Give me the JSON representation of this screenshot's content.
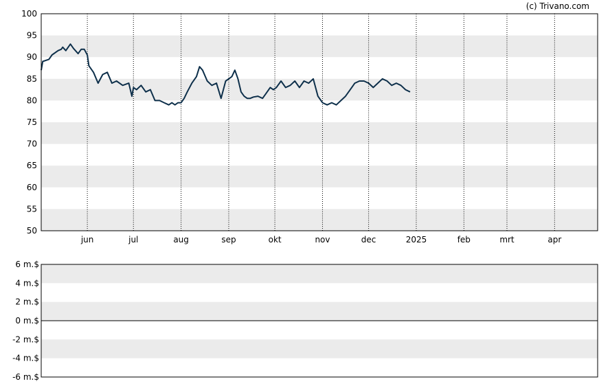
{
  "credit": "(c) Trivano.com",
  "colors": {
    "band": "#ebebeb",
    "line": "#0d2f4a",
    "marker": "#e8323c",
    "marker_fill": "rgba(232,50,60,0.55)",
    "axis": "#000000"
  },
  "chart_data": [
    {
      "type": "line",
      "title": "",
      "xlabel": "",
      "ylabel": "",
      "ylim": [
        50,
        100
      ],
      "yticks": [
        "100",
        "95",
        "90",
        "85",
        "80",
        "75",
        "70",
        "65",
        "60",
        "55",
        "50"
      ],
      "xticks": [
        "jun",
        "jul",
        "aug",
        "sep",
        "okt",
        "nov",
        "dec",
        "2025",
        "feb",
        "mrt",
        "apr"
      ],
      "xtick_dates": [
        "2024-06-01",
        "2024-07-01",
        "2024-08-01",
        "2024-09-01",
        "2024-10-01",
        "2024-11-01",
        "2024-12-01",
        "2025-01-01",
        "2025-02-01",
        "2025-03-01",
        "2025-04-01"
      ],
      "x_range": [
        "2024-05-02",
        "2025-04-29"
      ],
      "grid": "horizontal bands, vertical dotted lines at month starts",
      "series": [
        {
          "points": [
            [
              "2024-05-02",
              87.0
            ],
            [
              "2024-05-03",
              89.0
            ],
            [
              "2024-05-07",
              89.5
            ],
            [
              "2024-05-09",
              90.5
            ],
            [
              "2024-05-13",
              91.5
            ],
            [
              "2024-05-15",
              91.8
            ],
            [
              "2024-05-16",
              92.3
            ],
            [
              "2024-05-18",
              91.5
            ],
            [
              "2024-05-21",
              93.0
            ],
            [
              "2024-05-23",
              92.0
            ],
            [
              "2024-05-26",
              90.8
            ],
            [
              "2024-05-28",
              91.8
            ],
            [
              "2024-05-30",
              91.8
            ],
            [
              "2024-06-01",
              90.5
            ],
            [
              "2024-06-02",
              88.0
            ],
            [
              "2024-06-05",
              86.5
            ],
            [
              "2024-06-08",
              84.0
            ],
            [
              "2024-06-11",
              86.0
            ],
            [
              "2024-06-14",
              86.5
            ],
            [
              "2024-06-17",
              84.0
            ],
            [
              "2024-06-20",
              84.5
            ],
            [
              "2024-06-24",
              83.5
            ],
            [
              "2024-06-28",
              84.0
            ],
            [
              "2024-06-30",
              81.0
            ],
            [
              "2024-07-01",
              83.0
            ],
            [
              "2024-07-03",
              82.5
            ],
            [
              "2024-07-06",
              83.5
            ],
            [
              "2024-07-09",
              82.0
            ],
            [
              "2024-07-12",
              82.5
            ],
            [
              "2024-07-15",
              80.0
            ],
            [
              "2024-07-18",
              80.0
            ],
            [
              "2024-07-21",
              79.5
            ],
            [
              "2024-07-24",
              79.0
            ],
            [
              "2024-07-26",
              79.5
            ],
            [
              "2024-07-28",
              79.0
            ],
            [
              "2024-07-30",
              79.5
            ],
            [
              "2024-08-01",
              79.5
            ],
            [
              "2024-08-03",
              80.5
            ],
            [
              "2024-08-05",
              82.0
            ],
            [
              "2024-08-08",
              84.0
            ],
            [
              "2024-08-11",
              85.5
            ],
            [
              "2024-08-13",
              87.8
            ],
            [
              "2024-08-15",
              87.0
            ],
            [
              "2024-08-18",
              84.5
            ],
            [
              "2024-08-21",
              83.5
            ],
            [
              "2024-08-24",
              84.0
            ],
            [
              "2024-08-27",
              80.5
            ],
            [
              "2024-08-30",
              84.5
            ],
            [
              "2024-09-01",
              85.0
            ],
            [
              "2024-09-03",
              85.5
            ],
            [
              "2024-09-05",
              87.0
            ],
            [
              "2024-09-07",
              85.0
            ],
            [
              "2024-09-09",
              82.0
            ],
            [
              "2024-09-11",
              81.0
            ],
            [
              "2024-09-13",
              80.5
            ],
            [
              "2024-09-15",
              80.5
            ],
            [
              "2024-09-17",
              80.8
            ],
            [
              "2024-09-20",
              81.0
            ],
            [
              "2024-09-23",
              80.5
            ],
            [
              "2024-09-25",
              81.5
            ],
            [
              "2024-09-28",
              83.0
            ],
            [
              "2024-09-30",
              82.5
            ],
            [
              "2024-10-02",
              83.0
            ],
            [
              "2024-10-05",
              84.5
            ],
            [
              "2024-10-08",
              83.0
            ],
            [
              "2024-10-11",
              83.5
            ],
            [
              "2024-10-14",
              84.5
            ],
            [
              "2024-10-17",
              83.0
            ],
            [
              "2024-10-20",
              84.5
            ],
            [
              "2024-10-23",
              84.0
            ],
            [
              "2024-10-26",
              85.0
            ],
            [
              "2024-10-29",
              81.0
            ],
            [
              "2024-11-01",
              79.5
            ],
            [
              "2024-11-04",
              79.0
            ],
            [
              "2024-11-07",
              79.5
            ],
            [
              "2024-11-10",
              79.0
            ],
            [
              "2024-11-13",
              80.0
            ],
            [
              "2024-11-16",
              81.0
            ],
            [
              "2024-11-19",
              82.5
            ],
            [
              "2024-11-22",
              84.0
            ],
            [
              "2024-11-25",
              84.5
            ],
            [
              "2024-11-28",
              84.5
            ],
            [
              "2024-12-01",
              84.0
            ],
            [
              "2024-12-04",
              83.0
            ],
            [
              "2024-12-07",
              84.0
            ],
            [
              "2024-12-10",
              85.0
            ],
            [
              "2024-12-13",
              84.5
            ],
            [
              "2024-12-16",
              83.5
            ],
            [
              "2024-12-19",
              84.0
            ],
            [
              "2024-12-22",
              83.5
            ],
            [
              "2024-12-25",
              82.5
            ],
            [
              "2024-12-28",
              82.0
            ]
          ]
        }
      ]
    },
    {
      "type": "bar",
      "title": "",
      "ylim": [
        -6,
        6
      ],
      "yticks": [
        "6 m.$",
        "4 m.$",
        "2 m.$",
        "0 m.$",
        "-2 m.$",
        "-4 m.$",
        "-6 m.$"
      ],
      "values": []
    }
  ]
}
